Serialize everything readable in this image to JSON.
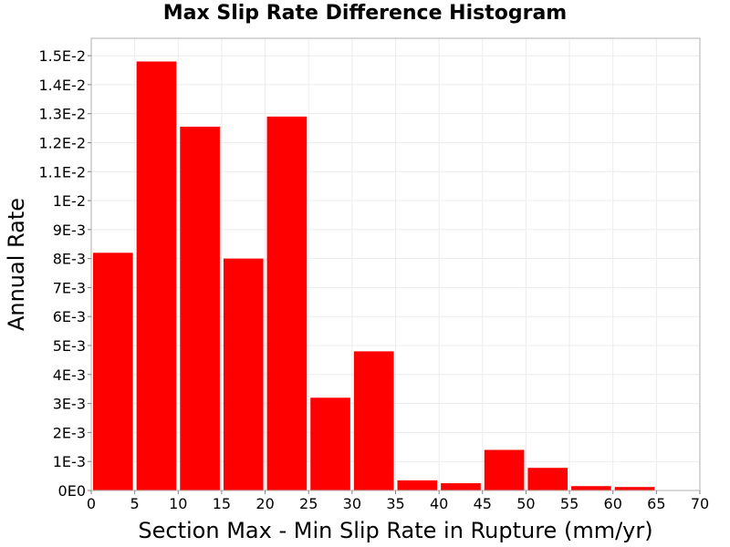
{
  "chart_data": {
    "type": "bar",
    "title": "Max Slip Rate Difference Histogram",
    "xlabel": "Section Max - Min Slip Rate in Rupture (mm/yr)",
    "ylabel": "Annual Rate",
    "bin_width": 5,
    "bins": [
      {
        "x_start": 0,
        "value": 0.0082
      },
      {
        "x_start": 5,
        "value": 0.0148
      },
      {
        "x_start": 10,
        "value": 0.01255
      },
      {
        "x_start": 15,
        "value": 0.008
      },
      {
        "x_start": 20,
        "value": 0.0129
      },
      {
        "x_start": 25,
        "value": 0.0032
      },
      {
        "x_start": 30,
        "value": 0.0048
      },
      {
        "x_start": 35,
        "value": 0.00035
      },
      {
        "x_start": 40,
        "value": 0.00025
      },
      {
        "x_start": 45,
        "value": 0.0014
      },
      {
        "x_start": 50,
        "value": 0.00078
      },
      {
        "x_start": 55,
        "value": 0.00015
      },
      {
        "x_start": 60,
        "value": 0.00012
      },
      {
        "x_start": 65,
        "value": 0.0
      }
    ],
    "xlim": [
      0,
      70
    ],
    "ylim": [
      0,
      0.0156
    ],
    "x_ticks": [
      {
        "value": 0,
        "label": "0"
      },
      {
        "value": 5,
        "label": "5"
      },
      {
        "value": 10,
        "label": "10"
      },
      {
        "value": 15,
        "label": "15"
      },
      {
        "value": 20,
        "label": "20"
      },
      {
        "value": 25,
        "label": "25"
      },
      {
        "value": 30,
        "label": "30"
      },
      {
        "value": 35,
        "label": "35"
      },
      {
        "value": 40,
        "label": "40"
      },
      {
        "value": 45,
        "label": "45"
      },
      {
        "value": 50,
        "label": "50"
      },
      {
        "value": 55,
        "label": "55"
      },
      {
        "value": 60,
        "label": "60"
      },
      {
        "value": 65,
        "label": "65"
      },
      {
        "value": 70,
        "label": "70"
      }
    ],
    "y_ticks": [
      {
        "value": 0,
        "label": "0E0"
      },
      {
        "value": 0.001,
        "label": "1E-3"
      },
      {
        "value": 0.002,
        "label": "2E-3"
      },
      {
        "value": 0.003,
        "label": "3E-3"
      },
      {
        "value": 0.004,
        "label": "4E-3"
      },
      {
        "value": 0.005,
        "label": "5E-3"
      },
      {
        "value": 0.006,
        "label": "6E-3"
      },
      {
        "value": 0.007,
        "label": "7E-3"
      },
      {
        "value": 0.008,
        "label": "8E-3"
      },
      {
        "value": 0.009,
        "label": "9E-3"
      },
      {
        "value": 0.01,
        "label": "1E-2"
      },
      {
        "value": 0.011,
        "label": "1.1E-2"
      },
      {
        "value": 0.012,
        "label": "1.2E-2"
      },
      {
        "value": 0.013,
        "label": "1.3E-2"
      },
      {
        "value": 0.014,
        "label": "1.4E-2"
      },
      {
        "value": 0.015,
        "label": "1.5E-2"
      }
    ],
    "grid": true,
    "legend": false,
    "bar_color": "#ff0000",
    "grid_color": "#ececec",
    "frame_color": "#b0b0b0"
  }
}
